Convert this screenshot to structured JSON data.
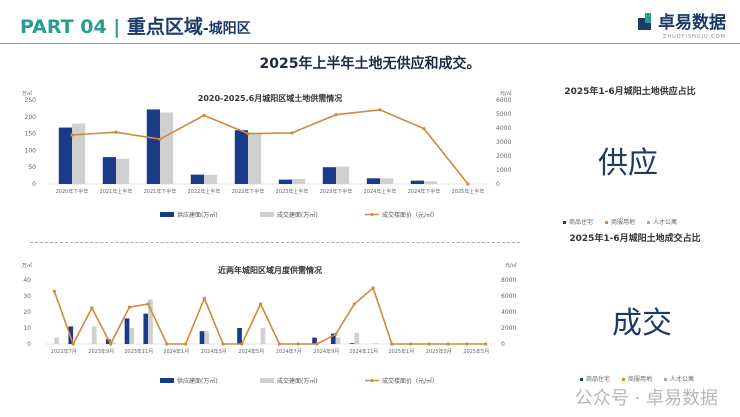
{
  "header": {
    "part": "PART 04 | ",
    "section": "重点区域",
    "district": "-城阳区",
    "logo_text": "卓易数据",
    "logo_sub": "ZHUOYISHUJU.COM"
  },
  "headline": "2025年上半年土地无供应和成交。",
  "chart_data": [
    {
      "type": "bar",
      "title": "2020-2025.6月城阳区域土地供需情况",
      "ylabel": "万㎡",
      "y2label": "元/㎡",
      "ylim": [
        0,
        250
      ],
      "y2lim": [
        0,
        6000
      ],
      "yticks": [
        "0",
        "50",
        "100",
        "150",
        "200",
        "250"
      ],
      "y2ticks": [
        "0",
        "1000",
        "2000",
        "3000",
        "4000",
        "5000",
        "6000"
      ],
      "categories": [
        "2020年下半年",
        "2021年上半年",
        "2021年下半年",
        "2022年上半年",
        "2022年下半年",
        "2023年上半年",
        "2023年下半年",
        "2024年上半年",
        "2024年下半年",
        "2025年上半年"
      ],
      "series": [
        {
          "name": "供应建面(万㎡)",
          "kind": "bar",
          "color": "#1b3a8a",
          "values": [
            168,
            80,
            222,
            28,
            160,
            13,
            50,
            17,
            10,
            0
          ]
        },
        {
          "name": "成交建面(万㎡)",
          "kind": "bar",
          "color": "#d0d0d0",
          "values": [
            180,
            75,
            213,
            27,
            150,
            15,
            52,
            17,
            8,
            0
          ]
        },
        {
          "name": "成交楼面价（元/㎡）",
          "kind": "line",
          "axis": "right",
          "color": "#d08a3a",
          "values": [
            3500,
            3700,
            3200,
            4900,
            3600,
            3650,
            4950,
            5300,
            3950,
            0
          ]
        }
      ]
    },
    {
      "type": "bar",
      "title": "近两年城阳区域月度供需情况",
      "ylabel": "万㎡",
      "y2label": "元/㎡",
      "ylim": [
        0,
        40
      ],
      "y2lim": [
        0,
        8000
      ],
      "yticks": [
        "0",
        "10",
        "20",
        "30",
        "40"
      ],
      "y2ticks": [
        "0",
        "2000",
        "4000",
        "6000",
        "8000"
      ],
      "categories": [
        "2023年7月",
        "2023年8月",
        "2023年9月",
        "2023年10月",
        "2023年11月",
        "2023年12月",
        "2024年1月",
        "2024年2月",
        "2024年3月",
        "2024年4月",
        "2024年5月",
        "2024年6月",
        "2024年7月",
        "2024年8月",
        "2024年9月",
        "2024年10月",
        "2024年11月",
        "2024年12月",
        "2025年1月",
        "2025年2月",
        "2025年3月",
        "2025年4月",
        "2025年5月",
        "2025年6月"
      ],
      "shown_tick_labels": [
        "2023年7月",
        "2023年9月",
        "2023年11月",
        "2024年1月",
        "2024年3月",
        "2024年5月",
        "2024年7月",
        "2024年9月",
        "2024年11月",
        "2025年1月",
        "2025年3月",
        "2025年5月"
      ],
      "series": [
        {
          "name": "供应建面(万㎡)",
          "kind": "bar",
          "color": "#1b3a8a",
          "values": [
            0,
            11,
            0,
            3,
            16,
            19,
            0,
            0,
            8,
            0,
            10,
            0,
            0,
            0,
            4,
            6.5,
            0.5,
            0,
            0,
            0,
            0,
            0,
            0,
            0
          ]
        },
        {
          "name": "成交建面(万㎡)",
          "kind": "bar",
          "color": "#d0d0d0",
          "values": [
            4,
            0,
            11,
            1,
            10,
            28,
            0,
            0,
            8,
            0,
            0,
            10,
            0,
            0,
            0,
            4,
            7,
            0.5,
            0,
            0,
            0,
            0,
            0,
            0
          ]
        },
        {
          "name": "成交楼面价（元/㎡）",
          "kind": "line",
          "axis": "right",
          "color": "#d08a3a",
          "values": [
            6600,
            0,
            4500,
            0,
            4600,
            5000,
            0,
            0,
            5700,
            0,
            0,
            5000,
            0,
            0,
            0,
            1200,
            5000,
            7000,
            0,
            0,
            0,
            0,
            0,
            0
          ]
        }
      ]
    }
  ],
  "right": {
    "supply_title": "2025年1-6月城阳土地供应占比",
    "supply_big": "供应",
    "deal_title": "2025年1-6月城阳土地成交占比",
    "deal_big": "成交",
    "legend": [
      "商品住宅",
      "商服用地",
      "人才公寓"
    ],
    "legend_colors": [
      "#1e3a68",
      "#d08a3a",
      "#aaaaaa"
    ]
  },
  "watermark": "公众号 · 卓易数据"
}
